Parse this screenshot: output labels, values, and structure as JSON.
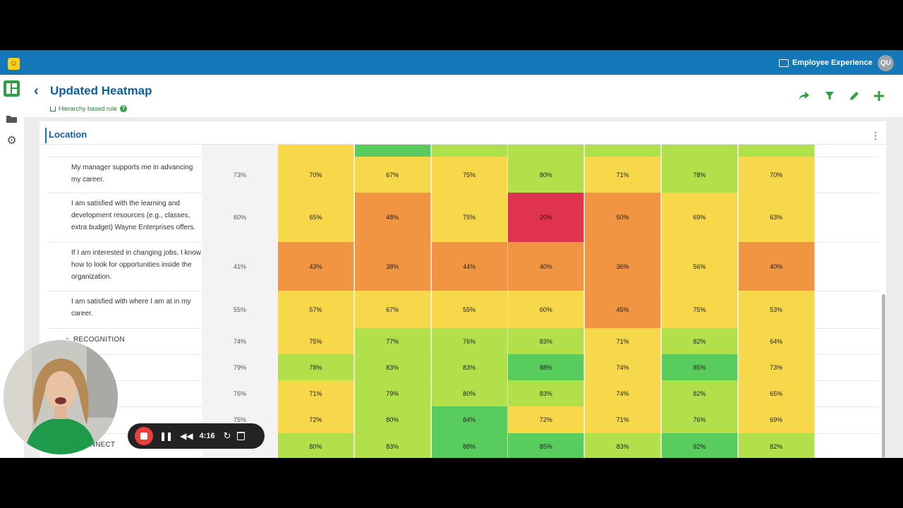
{
  "app": {
    "workspace": "Employee Experience",
    "user_initials": "QU"
  },
  "header": {
    "title": "Updated Heatmap",
    "subtitle": "Hierarchy based rule"
  },
  "panel": {
    "title": "Location"
  },
  "colors": {
    "red": "#e0334f",
    "orange": "#f29542",
    "yellow": "#f7d84a",
    "light_green": "#b1e04a",
    "green": "#58cc5c",
    "brand_blue": "#1478b8"
  },
  "heatmap": {
    "top_strip": [
      "yellow",
      "green",
      "light_green",
      "light_green",
      "light_green",
      "light_green",
      "light_green"
    ],
    "rows": [
      {
        "label": "My manager supports me in advancing my career.",
        "overall": "73%",
        "cells": [
          [
            "70%",
            "yellow"
          ],
          [
            "67%",
            "yellow"
          ],
          [
            "75%",
            "yellow"
          ],
          [
            "80%",
            "light_green"
          ],
          [
            "71%",
            "yellow"
          ],
          [
            "78%",
            "light_green"
          ],
          [
            "70%",
            "yellow"
          ]
        ]
      },
      {
        "label": "I am satisfied with the learning and development resources (e.g., classes, extra budget) Wayne Enterprises offers.",
        "overall": "60%",
        "cells": [
          [
            "65%",
            "yellow"
          ],
          [
            "48%",
            "orange"
          ],
          [
            "75%",
            "yellow"
          ],
          [
            "20%",
            "red"
          ],
          [
            "50%",
            "orange"
          ],
          [
            "69%",
            "yellow"
          ],
          [
            "63%",
            "yellow"
          ]
        ]
      },
      {
        "label": "If I am interested in changing jobs, I know how to look for opportunities inside the organization.",
        "overall": "41%",
        "cells": [
          [
            "43%",
            "orange"
          ],
          [
            "38%",
            "orange"
          ],
          [
            "44%",
            "orange"
          ],
          [
            "40%",
            "orange"
          ],
          [
            "36%",
            "orange"
          ],
          [
            "56%",
            "yellow"
          ],
          [
            "40%",
            "orange"
          ]
        ]
      },
      {
        "label": "I am satisfied with where I am at in my career.",
        "overall": "55%",
        "cells": [
          [
            "57%",
            "yellow"
          ],
          [
            "67%",
            "yellow"
          ],
          [
            "55%",
            "yellow"
          ],
          [
            "60%",
            "yellow"
          ],
          [
            "45%",
            "orange"
          ],
          [
            "75%",
            "yellow"
          ],
          [
            "53%",
            "yellow"
          ]
        ]
      },
      {
        "label": "RECOGNITION",
        "group": true,
        "overall": "74%",
        "cells": [
          [
            "75%",
            "yellow"
          ],
          [
            "77%",
            "light_green"
          ],
          [
            "76%",
            "light_green"
          ],
          [
            "83%",
            "light_green"
          ],
          [
            "71%",
            "yellow"
          ],
          [
            "82%",
            "light_green"
          ],
          [
            "64%",
            "yellow"
          ]
        ]
      },
      {
        "label": "",
        "group": true,
        "overall": "79%",
        "cells": [
          [
            "78%",
            "light_green"
          ],
          [
            "83%",
            "light_green"
          ],
          [
            "83%",
            "light_green"
          ],
          [
            "88%",
            "green"
          ],
          [
            "74%",
            "yellow"
          ],
          [
            "85%",
            "green"
          ],
          [
            "73%",
            "yellow"
          ]
        ]
      },
      {
        "label": "CAPACITY",
        "group": true,
        "overall": "76%",
        "cells": [
          [
            "71%",
            "yellow"
          ],
          [
            "79%",
            "light_green"
          ],
          [
            "80%",
            "light_green"
          ],
          [
            "83%",
            "light_green"
          ],
          [
            "74%",
            "yellow"
          ],
          [
            "82%",
            "light_green"
          ],
          [
            "65%",
            "yellow"
          ]
        ]
      },
      {
        "label": "",
        "group": true,
        "overall": "75%",
        "cells": [
          [
            "72%",
            "yellow"
          ],
          [
            "80%",
            "light_green"
          ],
          [
            "84%",
            "green"
          ],
          [
            "72%",
            "yellow"
          ],
          [
            "71%",
            "yellow"
          ],
          [
            "76%",
            "light_green"
          ],
          [
            "69%",
            "yellow"
          ]
        ]
      },
      {
        "label": "L CONNECT",
        "group": true,
        "overall": "85%",
        "cells": [
          [
            "80%",
            "light_green"
          ],
          [
            "83%",
            "light_green"
          ],
          [
            "88%",
            "green"
          ],
          [
            "85%",
            "green"
          ],
          [
            "83%",
            "light_green"
          ],
          [
            "92%",
            "green"
          ],
          [
            "82%",
            "light_green"
          ]
        ]
      }
    ]
  },
  "recorder": {
    "time": "4:16"
  }
}
